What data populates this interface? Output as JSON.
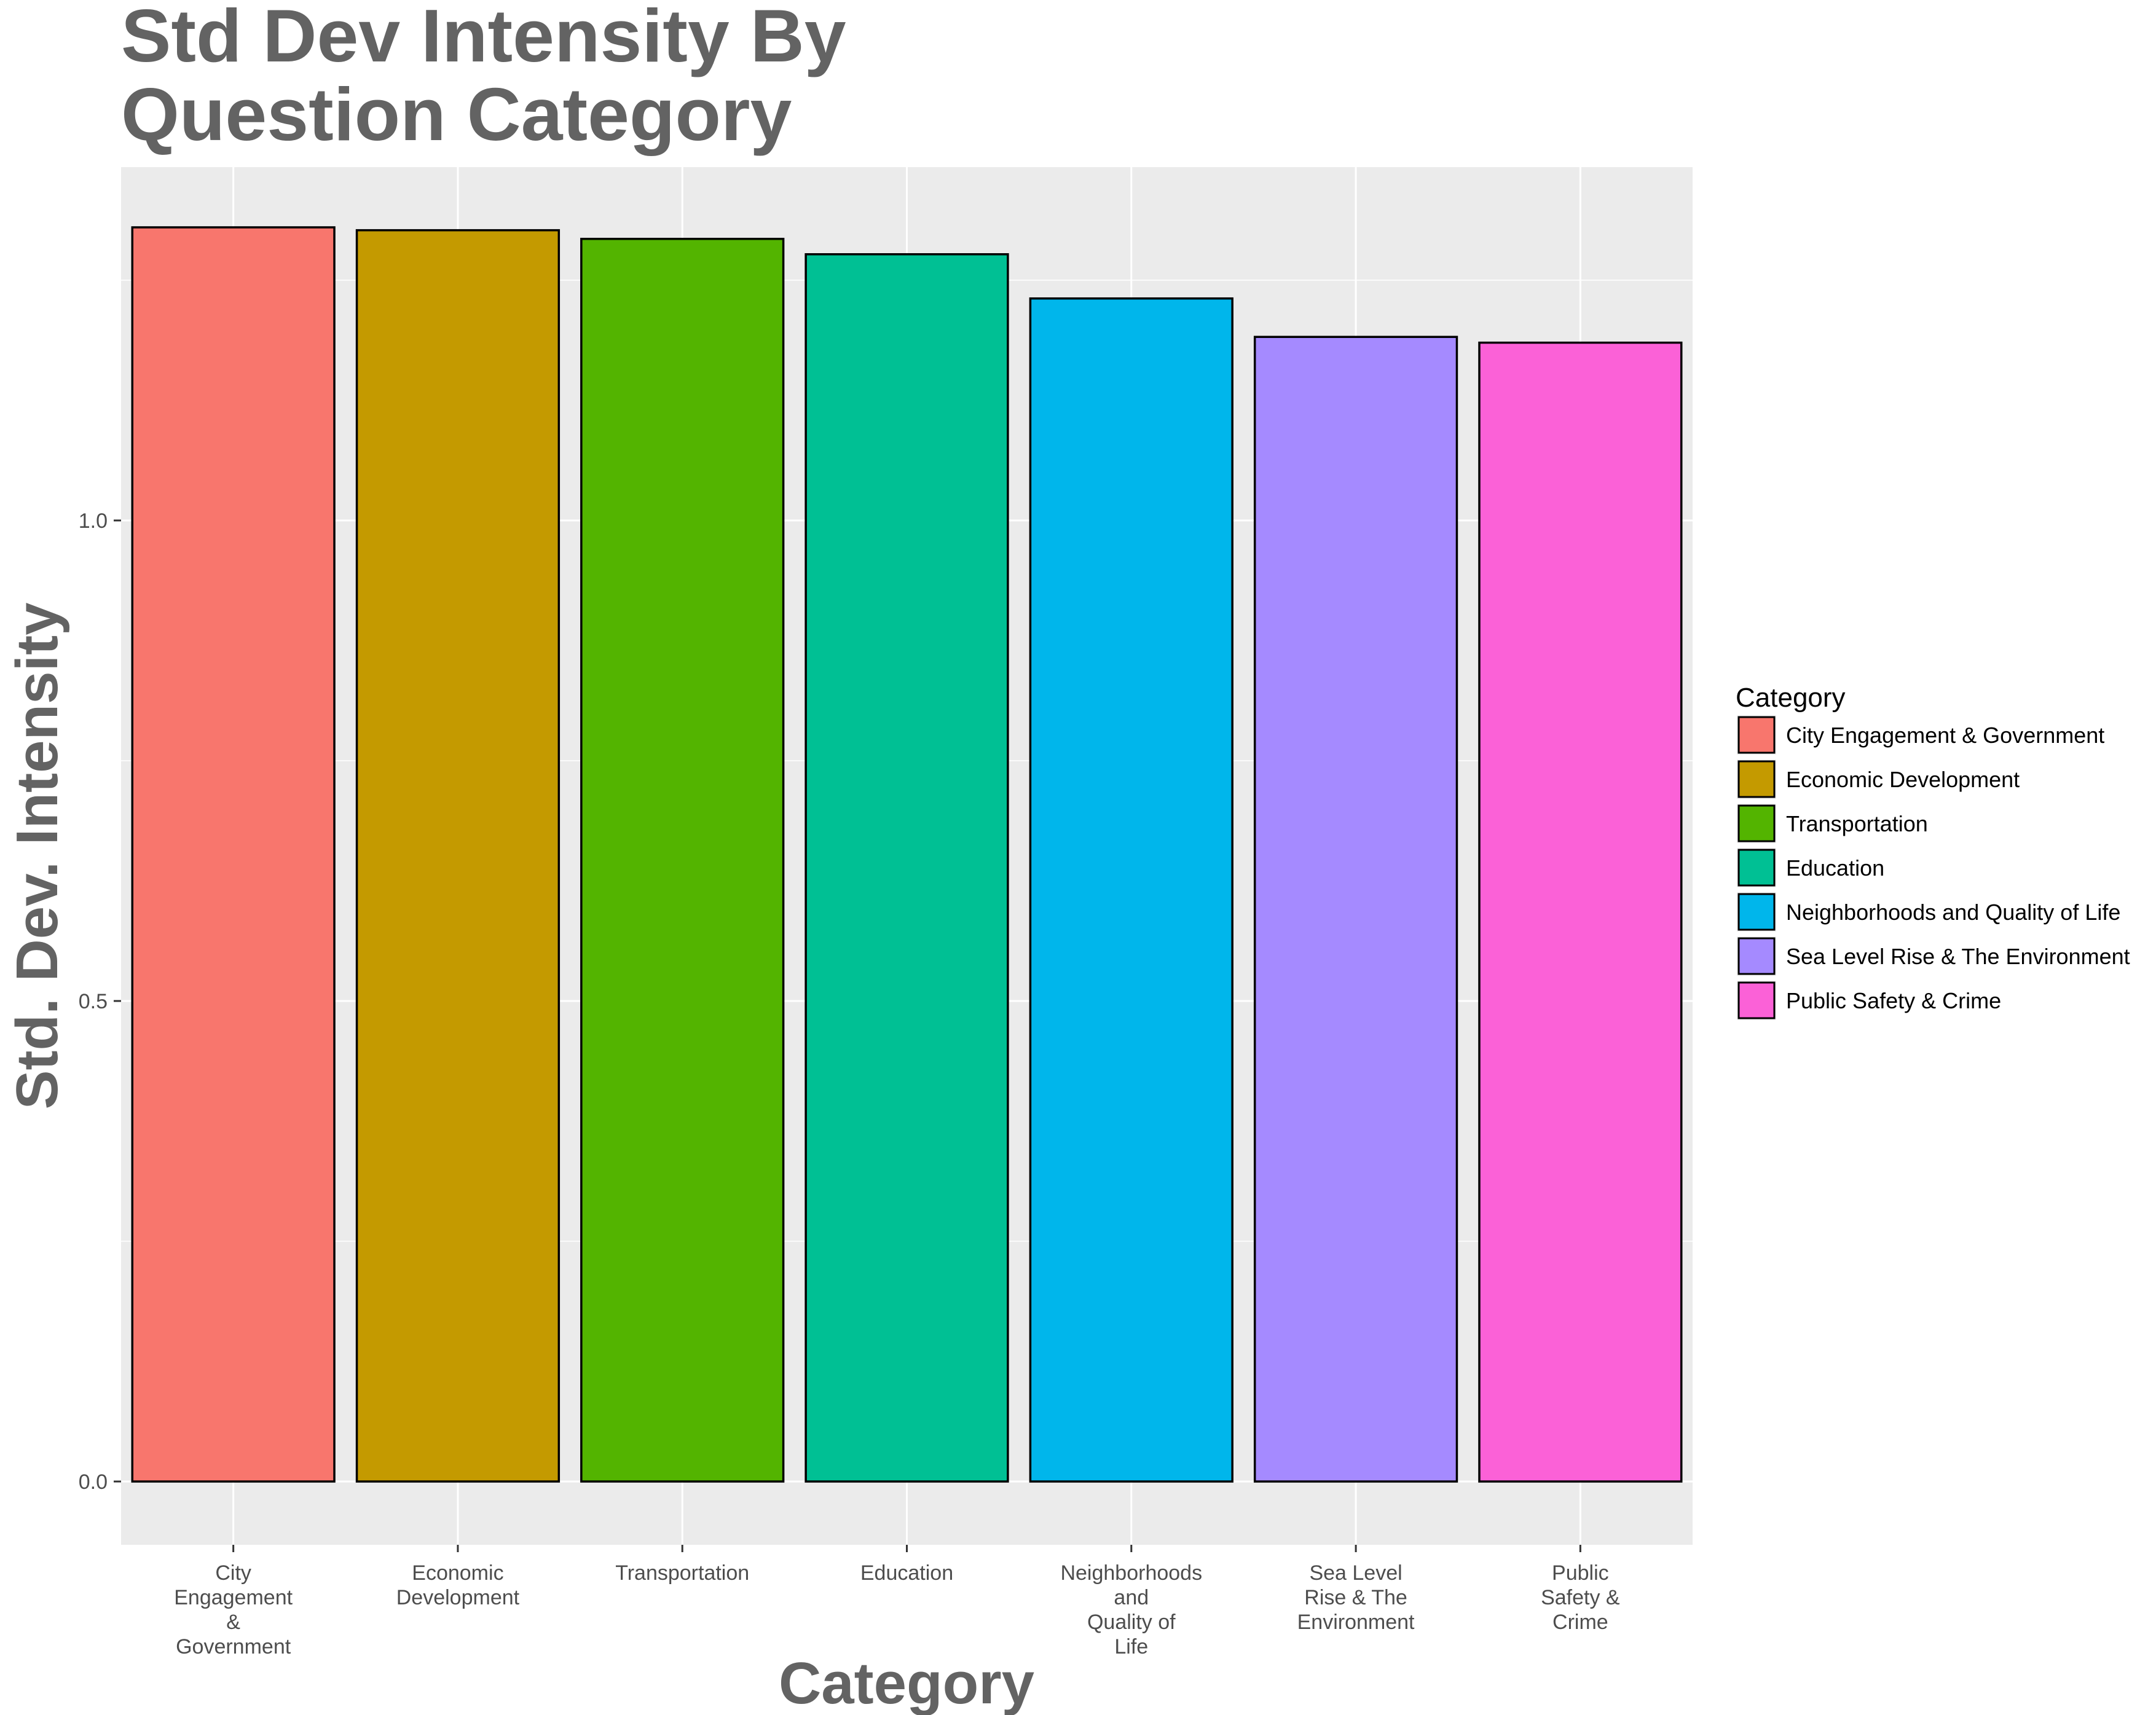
{
  "chart_data": {
    "type": "bar",
    "title_lines": [
      "Std Dev Intensity By",
      "Question Category"
    ],
    "xlabel": "Category",
    "ylabel": "Std. Dev. Intensity",
    "ylim": [
      -0.05,
      1.37
    ],
    "y_ticks": [
      {
        "value": 0.0,
        "label": "0.0"
      },
      {
        "value": 0.5,
        "label": "0.5"
      },
      {
        "value": 1.0,
        "label": "1.0"
      }
    ],
    "grid": true,
    "legend_position": "right",
    "legend_title": "Category",
    "categories": [
      "City Engagement & Government",
      "Economic Development",
      "Transportation",
      "Education",
      "Neighborhoods and Quality of Life",
      "Sea Level Rise & The Environment",
      "Public Safety & Crime"
    ],
    "category_tick_lines": [
      [
        "City",
        "Engagement",
        "&",
        "Government"
      ],
      [
        "Economic",
        "Development"
      ],
      [
        "Transportation"
      ],
      [
        "Education"
      ],
      [
        "Neighborhoods",
        "and",
        "Quality of",
        "Life"
      ],
      [
        "Sea Level",
        "Rise & The",
        "Environment"
      ],
      [
        "Public",
        "Safety &",
        "Crime"
      ]
    ],
    "values": [
      1.305,
      1.302,
      1.293,
      1.277,
      1.231,
      1.191,
      1.185
    ],
    "colors": [
      "#F8766D",
      "#C49A00",
      "#53B400",
      "#00C094",
      "#00B6EB",
      "#A58AFF",
      "#FB61D7"
    ]
  }
}
